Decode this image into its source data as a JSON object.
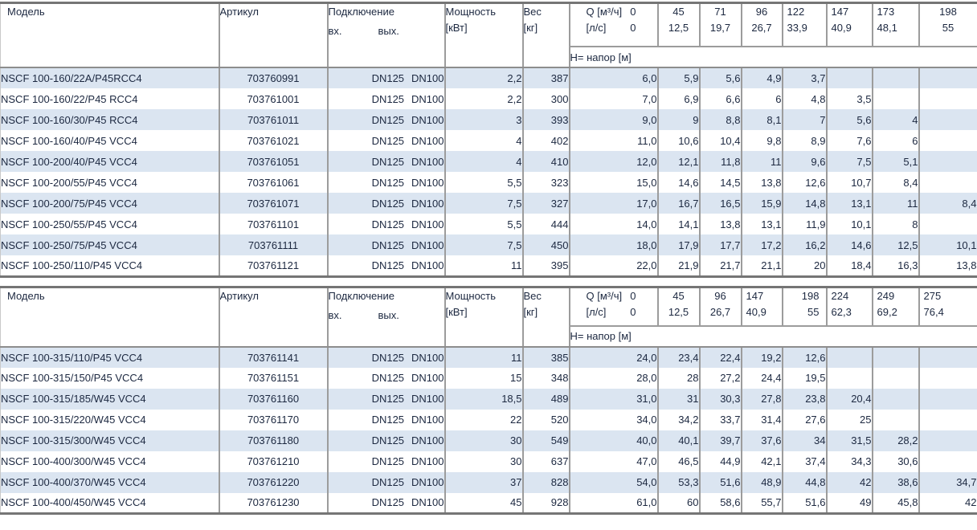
{
  "shared": {
    "col_model": "Модель",
    "col_article": "Артикул",
    "col_connection": "Подключение",
    "col_conn_in": "вх.",
    "col_conn_out": "вых.",
    "col_power_line1": "Мощность",
    "col_power_line2": "[кВт]",
    "col_weight_line1": "Вес",
    "col_weight_line2": "[кг]",
    "q_line1_label": "Q [м³/ч]",
    "q_line1_zero": "0",
    "q_line2_label": "[л/с]",
    "q_line2_zero": "0",
    "head_row_label": "H= напор [м]"
  },
  "colors": {
    "row_stripe": "#dbe5f1",
    "row_plain": "#ffffff",
    "grid_line": "#9c9c9c",
    "frame_line": "#757575",
    "header_text": "#000000",
    "data_text": "#1c2840"
  },
  "tables": [
    {
      "q_points": [
        {
          "m3h": "45",
          "ls": "12,5"
        },
        {
          "m3h": "71",
          "ls": "19,7"
        },
        {
          "m3h": "96",
          "ls": "26,7"
        },
        {
          "m3h": "122",
          "ls": "33,9"
        },
        {
          "m3h": "147",
          "ls": "40,9"
        },
        {
          "m3h": "173",
          "ls": "48,1"
        },
        {
          "m3h": "198",
          "ls": "55"
        }
      ],
      "rows": [
        {
          "model": "NSCF 100-160/22A/P45RCC4",
          "article": "703760991",
          "dn_in": "DN125",
          "dn_out": "DN100",
          "power": "2,2",
          "weight": "387",
          "h": [
            "6,0",
            "5,9",
            "5,6",
            "4,9",
            "3,7",
            "",
            "",
            ""
          ]
        },
        {
          "model": "NSCF 100-160/22/P45 RCC4",
          "article": "703761001",
          "dn_in": "DN125",
          "dn_out": "DN100",
          "power": "2,2",
          "weight": "300",
          "h": [
            "7,0",
            "6,9",
            "6,6",
            "6",
            "4,8",
            "3,5",
            "",
            ""
          ]
        },
        {
          "model": "NSCF 100-160/30/P45 RCC4",
          "article": "703761011",
          "dn_in": "DN125",
          "dn_out": "DN100",
          "power": "3",
          "weight": "393",
          "h": [
            "9,0",
            "9",
            "8,8",
            "8,1",
            "7",
            "5,6",
            "4",
            ""
          ]
        },
        {
          "model": "NSCF 100-160/40/P45 VCC4",
          "article": "703761021",
          "dn_in": "DN125",
          "dn_out": "DN100",
          "power": "4",
          "weight": "402",
          "h": [
            "11,0",
            "10,6",
            "10,4",
            "9,8",
            "8,9",
            "7,6",
            "6",
            ""
          ]
        },
        {
          "model": "NSCF 100-200/40/P45 VCC4",
          "article": "703761051",
          "dn_in": "DN125",
          "dn_out": "DN100",
          "power": "4",
          "weight": "410",
          "h": [
            "12,0",
            "12,1",
            "11,8",
            "11",
            "9,6",
            "7,5",
            "5,1",
            ""
          ]
        },
        {
          "model": "NSCF 100-200/55/P45 VCC4",
          "article": "703761061",
          "dn_in": "DN125",
          "dn_out": "DN100",
          "power": "5,5",
          "weight": "323",
          "h": [
            "15,0",
            "14,6",
            "14,5",
            "13,8",
            "12,6",
            "10,7",
            "8,4",
            ""
          ]
        },
        {
          "model": "NSCF 100-200/75/P45 VCC4",
          "article": "703761071",
          "dn_in": "DN125",
          "dn_out": "DN100",
          "power": "7,5",
          "weight": "327",
          "h": [
            "17,0",
            "16,7",
            "16,5",
            "15,9",
            "14,8",
            "13,1",
            "11",
            "8,4"
          ]
        },
        {
          "model": "NSCF 100-250/55/P45 VCC4",
          "article": "703761101",
          "dn_in": "DN125",
          "dn_out": "DN100",
          "power": "5,5",
          "weight": "444",
          "h": [
            "14,0",
            "14,1",
            "13,8",
            "13,1",
            "11,9",
            "10,1",
            "8",
            ""
          ]
        },
        {
          "model": "NSCF 100-250/75/P45 VCC4",
          "article": "703761111",
          "dn_in": "DN125",
          "dn_out": "DN100",
          "power": "7,5",
          "weight": "450",
          "h": [
            "18,0",
            "17,9",
            "17,7",
            "17,2",
            "16,2",
            "14,6",
            "12,5",
            "10,1"
          ]
        },
        {
          "model": "NSCF 100-250/110/P45 VCC4",
          "article": "703761121",
          "dn_in": "DN125",
          "dn_out": "DN100",
          "power": "11",
          "weight": "395",
          "h": [
            "22,0",
            "21,9",
            "21,7",
            "21,1",
            "20",
            "18,4",
            "16,3",
            "13,8"
          ]
        }
      ]
    },
    {
      "q_points": [
        {
          "m3h": "45",
          "ls": "12,5"
        },
        {
          "m3h": "96",
          "ls": "26,7"
        },
        {
          "m3h": "147",
          "ls": "40,9"
        },
        {
          "m3h": "198",
          "ls": "55"
        },
        {
          "m3h": "224",
          "ls": "62,3"
        },
        {
          "m3h": "249",
          "ls": "69,2"
        },
        {
          "m3h": "275",
          "ls": "76,4"
        }
      ],
      "rows": [
        {
          "model": "NSCF 100-315/110/P45 VCC4",
          "article": "703761141",
          "dn_in": "DN125",
          "dn_out": "DN100",
          "power": "11",
          "weight": "385",
          "h": [
            "24,0",
            "23,4",
            "22,4",
            "19,2",
            "12,6",
            "",
            "",
            ""
          ]
        },
        {
          "model": "NSCF 100-315/150/P45 VCC4",
          "article": "703761151",
          "dn_in": "DN125",
          "dn_out": "DN100",
          "power": "15",
          "weight": "348",
          "h": [
            "28,0",
            "28",
            "27,2",
            "24,4",
            "19,5",
            "",
            "",
            ""
          ]
        },
        {
          "model": "NSCF 100-315/185/W45 VCC4",
          "article": "703761160",
          "dn_in": "DN125",
          "dn_out": "DN100",
          "power": "18,5",
          "weight": "489",
          "h": [
            "31,0",
            "31",
            "30,3",
            "27,8",
            "23,8",
            "20,4",
            "",
            ""
          ]
        },
        {
          "model": "NSCF 100-315/220/W45 VCC4",
          "article": "703761170",
          "dn_in": "DN125",
          "dn_out": "DN100",
          "power": "22",
          "weight": "520",
          "h": [
            "34,0",
            "34,2",
            "33,7",
            "31,4",
            "27,6",
            "25",
            "",
            ""
          ]
        },
        {
          "model": "NSCF 100-315/300/W45 VCC4",
          "article": "703761180",
          "dn_in": "DN125",
          "dn_out": "DN100",
          "power": "30",
          "weight": "549",
          "h": [
            "40,0",
            "40,1",
            "39,7",
            "37,6",
            "34",
            "31,5",
            "28,2",
            ""
          ]
        },
        {
          "model": "NSCF 100-400/300/W45 VCC4",
          "article": "703761210",
          "dn_in": "DN125",
          "dn_out": "DN100",
          "power": "30",
          "weight": "637",
          "h": [
            "47,0",
            "46,5",
            "44,9",
            "42,1",
            "37,4",
            "34,3",
            "30,6",
            ""
          ]
        },
        {
          "model": "NSCF 100-400/370/W45 VCC4",
          "article": "703761220",
          "dn_in": "DN125",
          "dn_out": "DN100",
          "power": "37",
          "weight": "828",
          "h": [
            "54,0",
            "53,3",
            "51,6",
            "48,9",
            "44,8",
            "42",
            "38,6",
            "34,7"
          ]
        },
        {
          "model": "NSCF 100-400/450/W45 VCC4",
          "article": "703761230",
          "dn_in": "DN125",
          "dn_out": "DN100",
          "power": "45",
          "weight": "928",
          "h": [
            "61,0",
            "60",
            "58,6",
            "55,7",
            "51,6",
            "49",
            "45,8",
            "42"
          ]
        }
      ]
    }
  ]
}
